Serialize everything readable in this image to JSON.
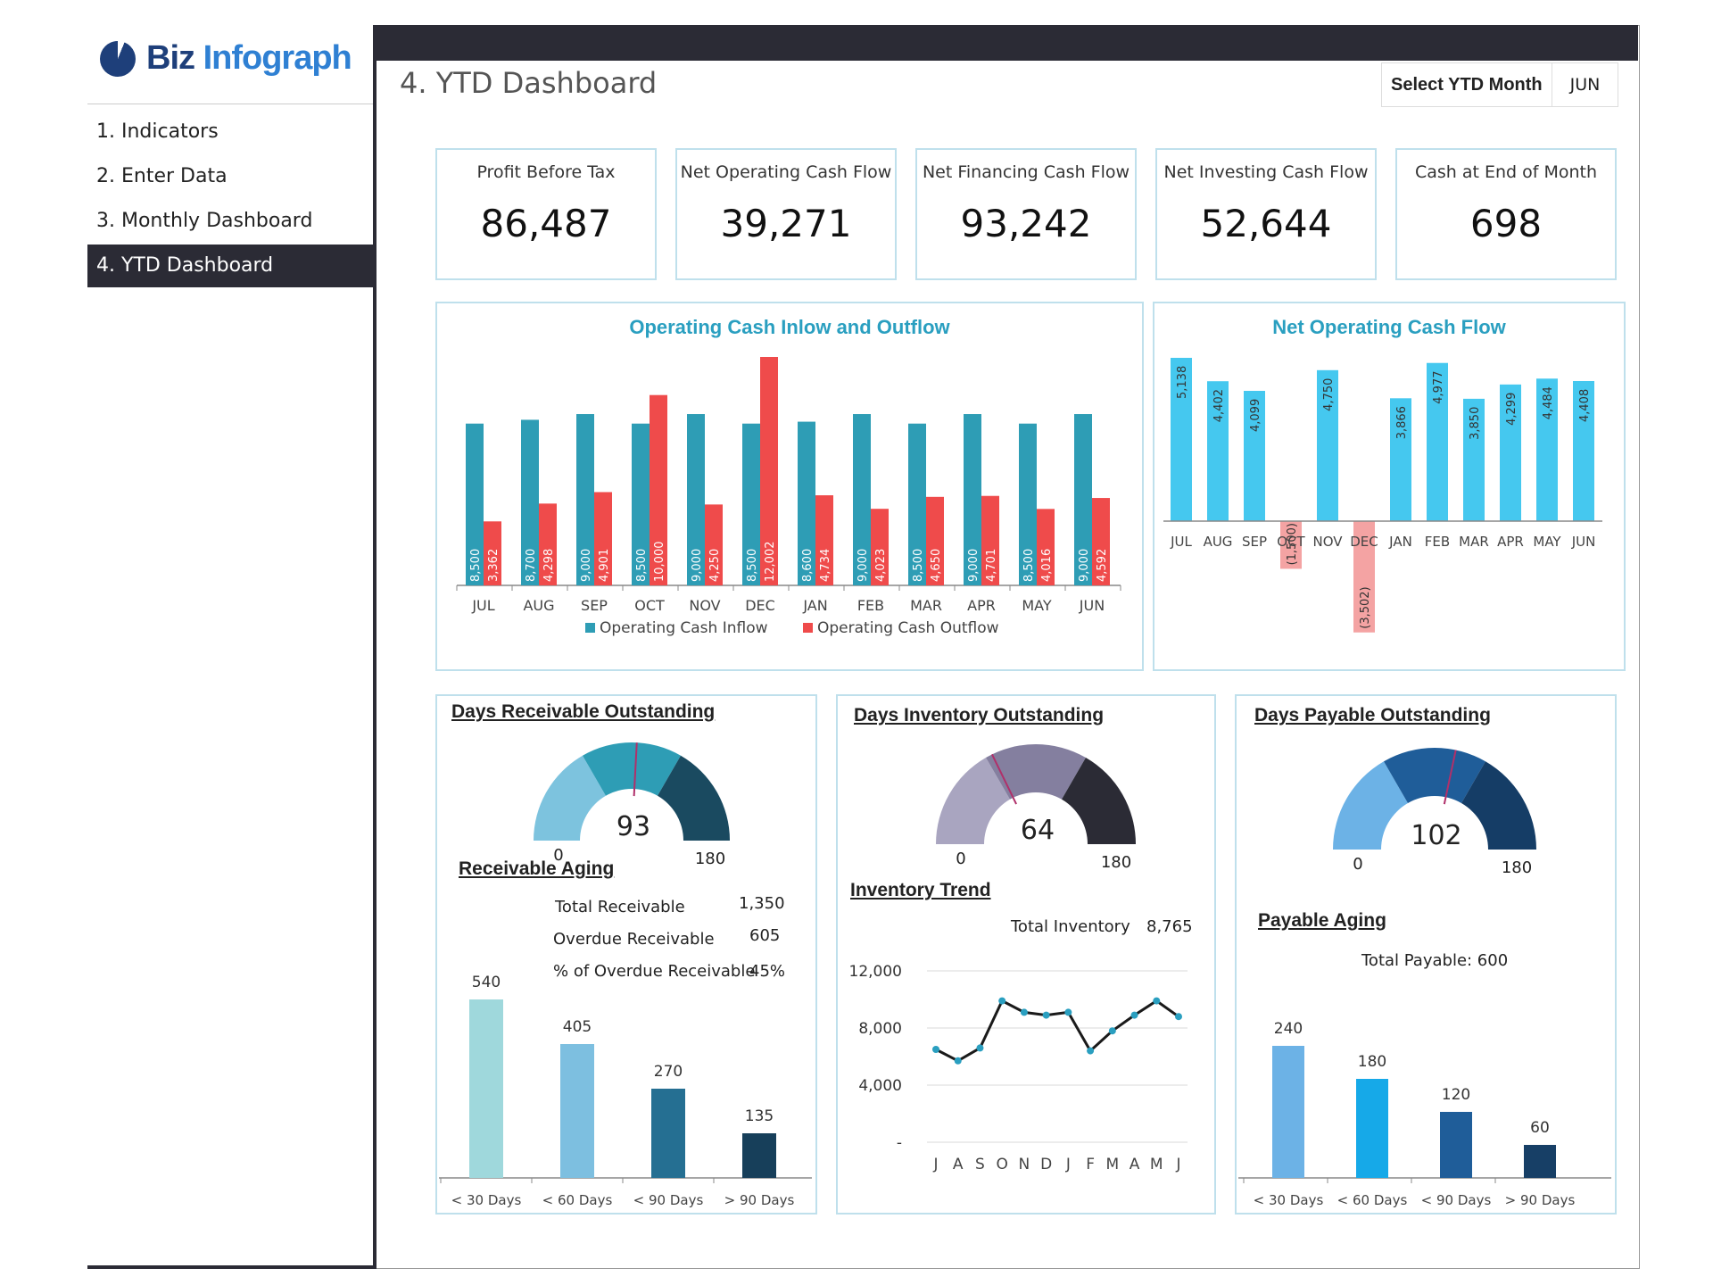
{
  "app": {
    "logo_biz": "Biz",
    "logo_info": "Infograph"
  },
  "nav": [
    {
      "label": "1. Indicators",
      "active": false
    },
    {
      "label": "2. Enter Data",
      "active": false
    },
    {
      "label": "3. Monthly Dashboard",
      "active": false
    },
    {
      "label": "4. YTD Dashboard",
      "active": true
    }
  ],
  "header": {
    "title": "4. YTD Dashboard",
    "select_label": "Select YTD Month",
    "select_value": "JUN"
  },
  "kpis": [
    {
      "label": "Profit Before Tax",
      "value": "86,487"
    },
    {
      "label": "Net Operating Cash Flow",
      "value": "39,271"
    },
    {
      "label": "Net Financing Cash Flow",
      "value": "93,242"
    },
    {
      "label": "Net Investing Cash Flow",
      "value": "52,644"
    },
    {
      "label": "Cash at End of Month",
      "value": "698"
    }
  ],
  "colors": {
    "accent": "#2a9fc0",
    "inflow": "#2e9db5",
    "outflow": "#ef4b4b",
    "net_pos": "#45c8ef",
    "net_neg": "#f4a3a3",
    "dark": "#2b2b35"
  },
  "chart_data": [
    {
      "type": "bar",
      "title": "Operating Cash Inlow and Outflow",
      "categories": [
        "JUL",
        "AUG",
        "SEP",
        "OCT",
        "NOV",
        "DEC",
        "JAN",
        "FEB",
        "MAR",
        "APR",
        "MAY",
        "JUN"
      ],
      "series": [
        {
          "name": "Operating Cash Inflow",
          "values": [
            8500,
            8700,
            9000,
            8500,
            9000,
            8500,
            8600,
            9000,
            8500,
            9000,
            8500,
            9000
          ],
          "labels": [
            "8,500",
            "8,700",
            "9,000",
            "8,500",
            "9,000",
            "8,500",
            "8,600",
            "9,000",
            "8,500",
            "9,000",
            "8,500",
            "9,000"
          ]
        },
        {
          "name": "Operating Cash Outflow",
          "values": [
            3362,
            4298,
            4901,
            10000,
            4250,
            12002,
            4734,
            4023,
            4650,
            4701,
            4016,
            4592
          ],
          "labels": [
            "3,362",
            "4,298",
            "4,901",
            "10,000",
            "4,250",
            "12,002",
            "4,734",
            "4,023",
            "4,650",
            "4,701",
            "4,016",
            "4,592"
          ]
        }
      ],
      "legend": "bottom"
    },
    {
      "type": "bar",
      "title": "Net Operating Cash Flow",
      "categories": [
        "JUL",
        "AUG",
        "SEP",
        "OCT",
        "NOV",
        "DEC",
        "JAN",
        "FEB",
        "MAR",
        "APR",
        "MAY",
        "JUN"
      ],
      "values": [
        5138,
        4402,
        4099,
        -1500,
        4750,
        -3502,
        3866,
        4977,
        3850,
        4299,
        4484,
        4408
      ],
      "labels": [
        "5,138",
        "4,402",
        "4,099",
        "(1,500)",
        "4,750",
        "(3,502)",
        "3,866",
        "4,977",
        "3,850",
        "4,299",
        "4,484",
        "4,408"
      ]
    },
    {
      "type": "gauge",
      "title": "Days Receivable Outstanding",
      "value": 93,
      "min": 0,
      "max": 180,
      "min_label": "0",
      "max_label": "180",
      "colors": [
        "#7dc3de",
        "#2e9db5",
        "#1a4a60"
      ]
    },
    {
      "type": "gauge",
      "title": "Days Inventory Outstanding",
      "value": 64,
      "min": 0,
      "max": 180,
      "min_label": "0",
      "max_label": "180",
      "colors": [
        "#a9a5c0",
        "#847f9f",
        "#2b2b35"
      ]
    },
    {
      "type": "gauge",
      "title": "Days Payable Outstanding",
      "value": 102,
      "min": 0,
      "max": 180,
      "min_label": "0",
      "max_label": "180",
      "colors": [
        "#6cb2e6",
        "#1f5d99",
        "#153d66"
      ]
    },
    {
      "type": "bar",
      "title": "Receivable Aging",
      "categories": [
        "< 30 Days",
        "< 60 Days",
        "< 90 Days",
        "> 90 Days"
      ],
      "values": [
        540,
        405,
        270,
        135
      ],
      "labels": [
        "540",
        "405",
        "270",
        "135"
      ],
      "colors": [
        "#9fd8dc",
        "#7dbfe0",
        "#256f92",
        "#173f5a"
      ]
    },
    {
      "type": "line",
      "title": "Inventory Trend",
      "categories": [
        "J",
        "A",
        "S",
        "O",
        "N",
        "D",
        "J",
        "F",
        "M",
        "A",
        "M",
        "J"
      ],
      "values": [
        6500,
        5700,
        6600,
        9900,
        9100,
        8900,
        9100,
        6400,
        7800,
        8900,
        9900,
        8800
      ],
      "ylim": [
        0,
        12000
      ],
      "yticks": [
        {
          "v": 0,
          "t": "-"
        },
        {
          "v": 4000,
          "t": "4,000"
        },
        {
          "v": 8000,
          "t": "8,000"
        },
        {
          "v": 12000,
          "t": "12,000"
        }
      ]
    },
    {
      "type": "bar",
      "title": "Payable Aging",
      "categories": [
        "< 30 Days",
        "< 60 Days",
        "< 90 Days",
        "> 90 Days"
      ],
      "values": [
        240,
        180,
        120,
        60
      ],
      "labels": [
        "240",
        "180",
        "120",
        "60"
      ],
      "colors": [
        "#6cb2e6",
        "#16a9e8",
        "#1f5d99",
        "#173f66"
      ]
    }
  ],
  "receivable": {
    "section_title": "Receivable Aging",
    "rows": [
      {
        "label": "Total Receivable",
        "value": "1,350"
      },
      {
        "label": "Overdue Receivable",
        "value": "605"
      },
      {
        "label": "% of Overdue Receivable",
        "value": "45%"
      }
    ]
  },
  "inventory": {
    "section_title": "Inventory Trend",
    "total_label": "Total Inventory",
    "total_value": "8,765"
  },
  "payable": {
    "section_title": "Payable Aging",
    "total_text": "Total Payable: 600"
  }
}
